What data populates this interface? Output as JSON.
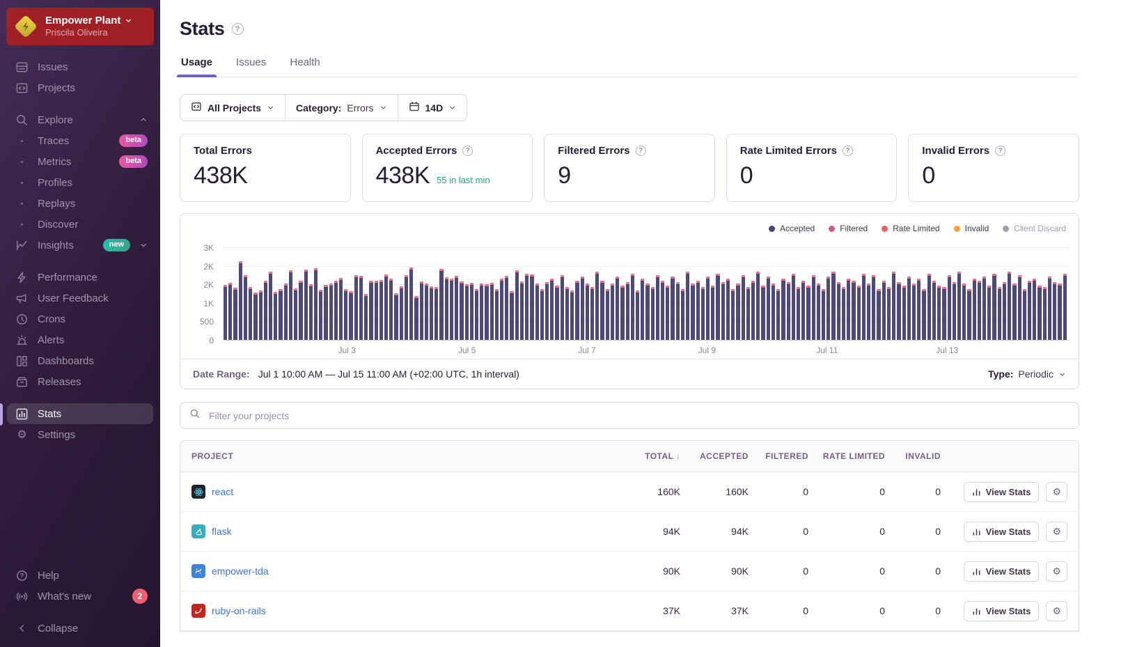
{
  "colors": {
    "accent": "#6c5fc7",
    "link_blue": "#3c74dd",
    "positive_teal": "#2ba185",
    "org_box_red": "#a02025",
    "sidebar_bg": "#2e1c3a",
    "bar_accepted": "#4d4a7a",
    "bar_cap": "#ef7287"
  },
  "sidebar": {
    "org": {
      "name": "Empower Plant",
      "user": "Priscila Oliveira"
    },
    "items": {
      "issues": "Issues",
      "projects": "Projects",
      "explore": "Explore",
      "traces": "Traces",
      "metrics": "Metrics",
      "profiles": "Profiles",
      "replays": "Replays",
      "discover": "Discover",
      "insights": "Insights",
      "performance": "Performance",
      "user_feedback": "User Feedback",
      "crons": "Crons",
      "alerts": "Alerts",
      "dashboards": "Dashboards",
      "releases": "Releases",
      "stats": "Stats",
      "settings": "Settings",
      "help": "Help",
      "whats_new": "What's new",
      "collapse": "Collapse"
    },
    "badges": {
      "beta": "beta",
      "new": "new",
      "whats_new_count": "2"
    }
  },
  "header": {
    "title": "Stats",
    "tabs": [
      "Usage",
      "Issues",
      "Health"
    ]
  },
  "filters": {
    "all_projects": "All Projects",
    "category_label": "Category:",
    "category_value": "Errors",
    "date_range": "14D"
  },
  "cards": [
    {
      "title": "Total Errors",
      "value": "438K",
      "sub": ""
    },
    {
      "title": "Accepted Errors",
      "value": "438K",
      "sub": "55 in last min"
    },
    {
      "title": "Filtered Errors",
      "value": "9",
      "sub": ""
    },
    {
      "title": "Rate Limited Errors",
      "value": "0",
      "sub": ""
    },
    {
      "title": "Invalid Errors",
      "value": "0",
      "sub": ""
    }
  ],
  "chart_data": {
    "type": "bar",
    "title": "Errors over time (1h interval, Jul 1 – Jul 15)",
    "legend": [
      {
        "name": "Accepted",
        "color": "#444674"
      },
      {
        "name": "Filtered",
        "color": "#c65b8a"
      },
      {
        "name": "Rate Limited",
        "color": "#ef6066"
      },
      {
        "name": "Invalid",
        "color": "#f3a23a"
      },
      {
        "name": "Client Discard",
        "color": "#a79cb1",
        "muted": true
      }
    ],
    "legend_position": "top-right",
    "grid": true,
    "ylim": [
      0,
      2750
    ],
    "y_ticks": [
      "0",
      "500",
      "1K",
      "2K",
      "2K",
      "3K"
    ],
    "y_tick_values": [
      0,
      500,
      1000,
      1500,
      2000,
      2500
    ],
    "x_labels": [
      "Jul 3",
      "Jul 5",
      "Jul 7",
      "Jul 9",
      "Jul 11",
      "Jul 13"
    ],
    "x_label_positions_pct": [
      14.6,
      28.8,
      43.0,
      57.2,
      71.4,
      85.6
    ],
    "series": [
      {
        "name": "Accepted",
        "color": "#4d4a7a",
        "values": [
          1490,
          1560,
          1430,
          2150,
          1760,
          1450,
          1290,
          1340,
          1620,
          1850,
          1300,
          1380,
          1540,
          1900,
          1410,
          1620,
          1910,
          1520,
          1950,
          1360,
          1500,
          1530,
          1620,
          1680,
          1390,
          1330,
          1760,
          1740,
          1250,
          1620,
          1610,
          1640,
          1780,
          1670,
          1270,
          1460,
          1760,
          1980,
          1190,
          1600,
          1530,
          1470,
          1440,
          1930,
          1700,
          1670,
          1740,
          1590,
          1510,
          1550,
          1390,
          1530,
          1510,
          1550,
          1380,
          1670,
          1740,
          1330,
          1900,
          1600,
          1810,
          1790,
          1530,
          1390,
          1580,
          1670,
          1480,
          1760,
          1440,
          1350,
          1620,
          1720,
          1530,
          1440,
          1860,
          1620,
          1390,
          1530,
          1720,
          1480,
          1580,
          1810,
          1340,
          1670,
          1530,
          1440,
          1760,
          1620,
          1480,
          1720,
          1580,
          1390,
          1860,
          1530,
          1620,
          1440,
          1720,
          1480,
          1810,
          1580,
          1670,
          1390,
          1530,
          1760,
          1440,
          1620,
          1860,
          1480,
          1720,
          1530,
          1390,
          1670,
          1580,
          1810,
          1440,
          1620,
          1480,
          1760,
          1530,
          1390,
          1720,
          1860,
          1580,
          1440,
          1670,
          1620,
          1480,
          1810,
          1530,
          1760,
          1390,
          1620,
          1440,
          1860,
          1580,
          1480,
          1720,
          1530,
          1670,
          1390,
          1810,
          1620,
          1480,
          1440,
          1760,
          1580,
          1860,
          1530,
          1390,
          1670,
          1620,
          1720,
          1480,
          1810,
          1440,
          1580,
          1860,
          1530,
          1760,
          1390,
          1620,
          1670,
          1480,
          1440,
          1720,
          1580,
          1530,
          1810
        ]
      },
      {
        "name": "Filtered / Rate Limited cap",
        "color": "#ef7287",
        "approx_per_bucket": 40
      }
    ]
  },
  "chart_footer": {
    "date_range_label": "Date Range:",
    "date_range_value": "Jul 1 10:00 AM — Jul 15 11:00 AM (+02:00 UTC, 1h interval)",
    "type_label": "Type:",
    "type_value": "Periodic"
  },
  "search": {
    "placeholder": "Filter your projects"
  },
  "table": {
    "columns": [
      "PROJECT",
      "TOTAL",
      "ACCEPTED",
      "FILTERED",
      "RATE LIMITED",
      "INVALID"
    ],
    "view_stats_label": "View Stats",
    "rows": [
      {
        "name": "react",
        "total": "160K",
        "accepted": "160K",
        "filtered": "0",
        "rate_limited": "0",
        "invalid": "0"
      },
      {
        "name": "flask",
        "total": "94K",
        "accepted": "94K",
        "filtered": "0",
        "rate_limited": "0",
        "invalid": "0"
      },
      {
        "name": "empower-tda",
        "total": "90K",
        "accepted": "90K",
        "filtered": "0",
        "rate_limited": "0",
        "invalid": "0"
      },
      {
        "name": "ruby-on-rails",
        "total": "37K",
        "accepted": "37K",
        "filtered": "0",
        "rate_limited": "0",
        "invalid": "0"
      }
    ]
  }
}
